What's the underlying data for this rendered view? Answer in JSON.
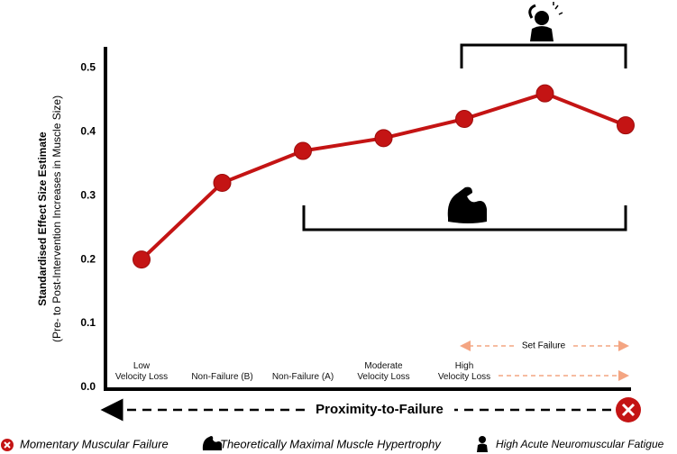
{
  "chart_data": {
    "type": "line",
    "y_label": "Standardised Effect Size Estimate",
    "y_sublabel": "(Pre- to Post-Intervention Increases in Muscle Size)",
    "x_label": "Proximity-to-Failure",
    "categories": [
      "Low\nVelocity Loss",
      "Non-Failure (B)",
      "Non-Failure (A)",
      "Moderate\nVelocity Loss",
      "High\nVelocity Loss",
      null,
      null
    ],
    "values": [
      0.2,
      0.32,
      0.37,
      0.39,
      0.42,
      0.46,
      0.41
    ],
    "color": "#c41414",
    "ylim": [
      0,
      0.53
    ],
    "yticks": [
      {
        "value": 0,
        "label": "0.0"
      },
      0.1,
      0.2,
      0.3,
      0.4,
      0.5
    ],
    "annotation": "Set Failure",
    "legend": [
      "Momentary Muscular Failure",
      "Theoretically Maximal Muscle Hypertrophy",
      "High Acute Neuromuscular Fatigue"
    ]
  }
}
